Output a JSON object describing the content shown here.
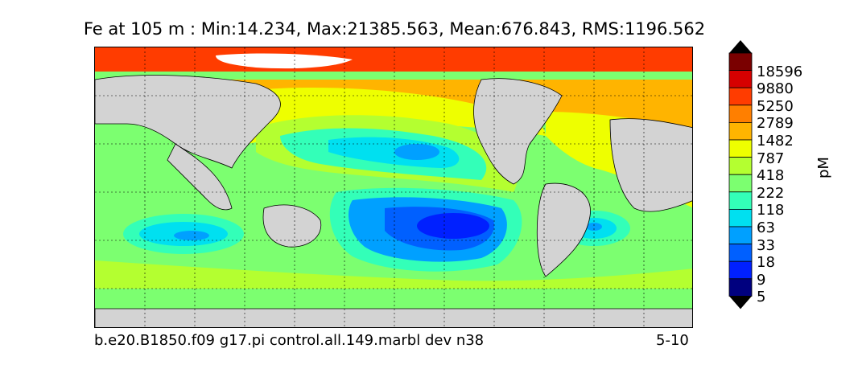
{
  "title": "Fe at 105 m : Min:14.234, Max:21385.563, Mean:676.843, RMS:1196.562",
  "caption_left": "b.e20.B1850.f09 g17.pi control.all.149.marbl dev n38",
  "caption_right": "5-10",
  "colorbar": {
    "unit": "pM",
    "levels": [
      "18596",
      "9880",
      "5250",
      "2789",
      "1482",
      "787",
      "418",
      "222",
      "118",
      "63",
      "33",
      "18",
      "9",
      "5"
    ],
    "colors": [
      "#7a0000",
      "#d60000",
      "#ff3c00",
      "#ff7f00",
      "#ffb400",
      "#eeff00",
      "#b4ff30",
      "#7cff70",
      "#33ffb8",
      "#00e0f0",
      "#00a0ff",
      "#0060ff",
      "#0020ff",
      "#00007f"
    ]
  },
  "colors": {
    "land": "#d3d3d3",
    "ice": "#ffffff"
  }
}
